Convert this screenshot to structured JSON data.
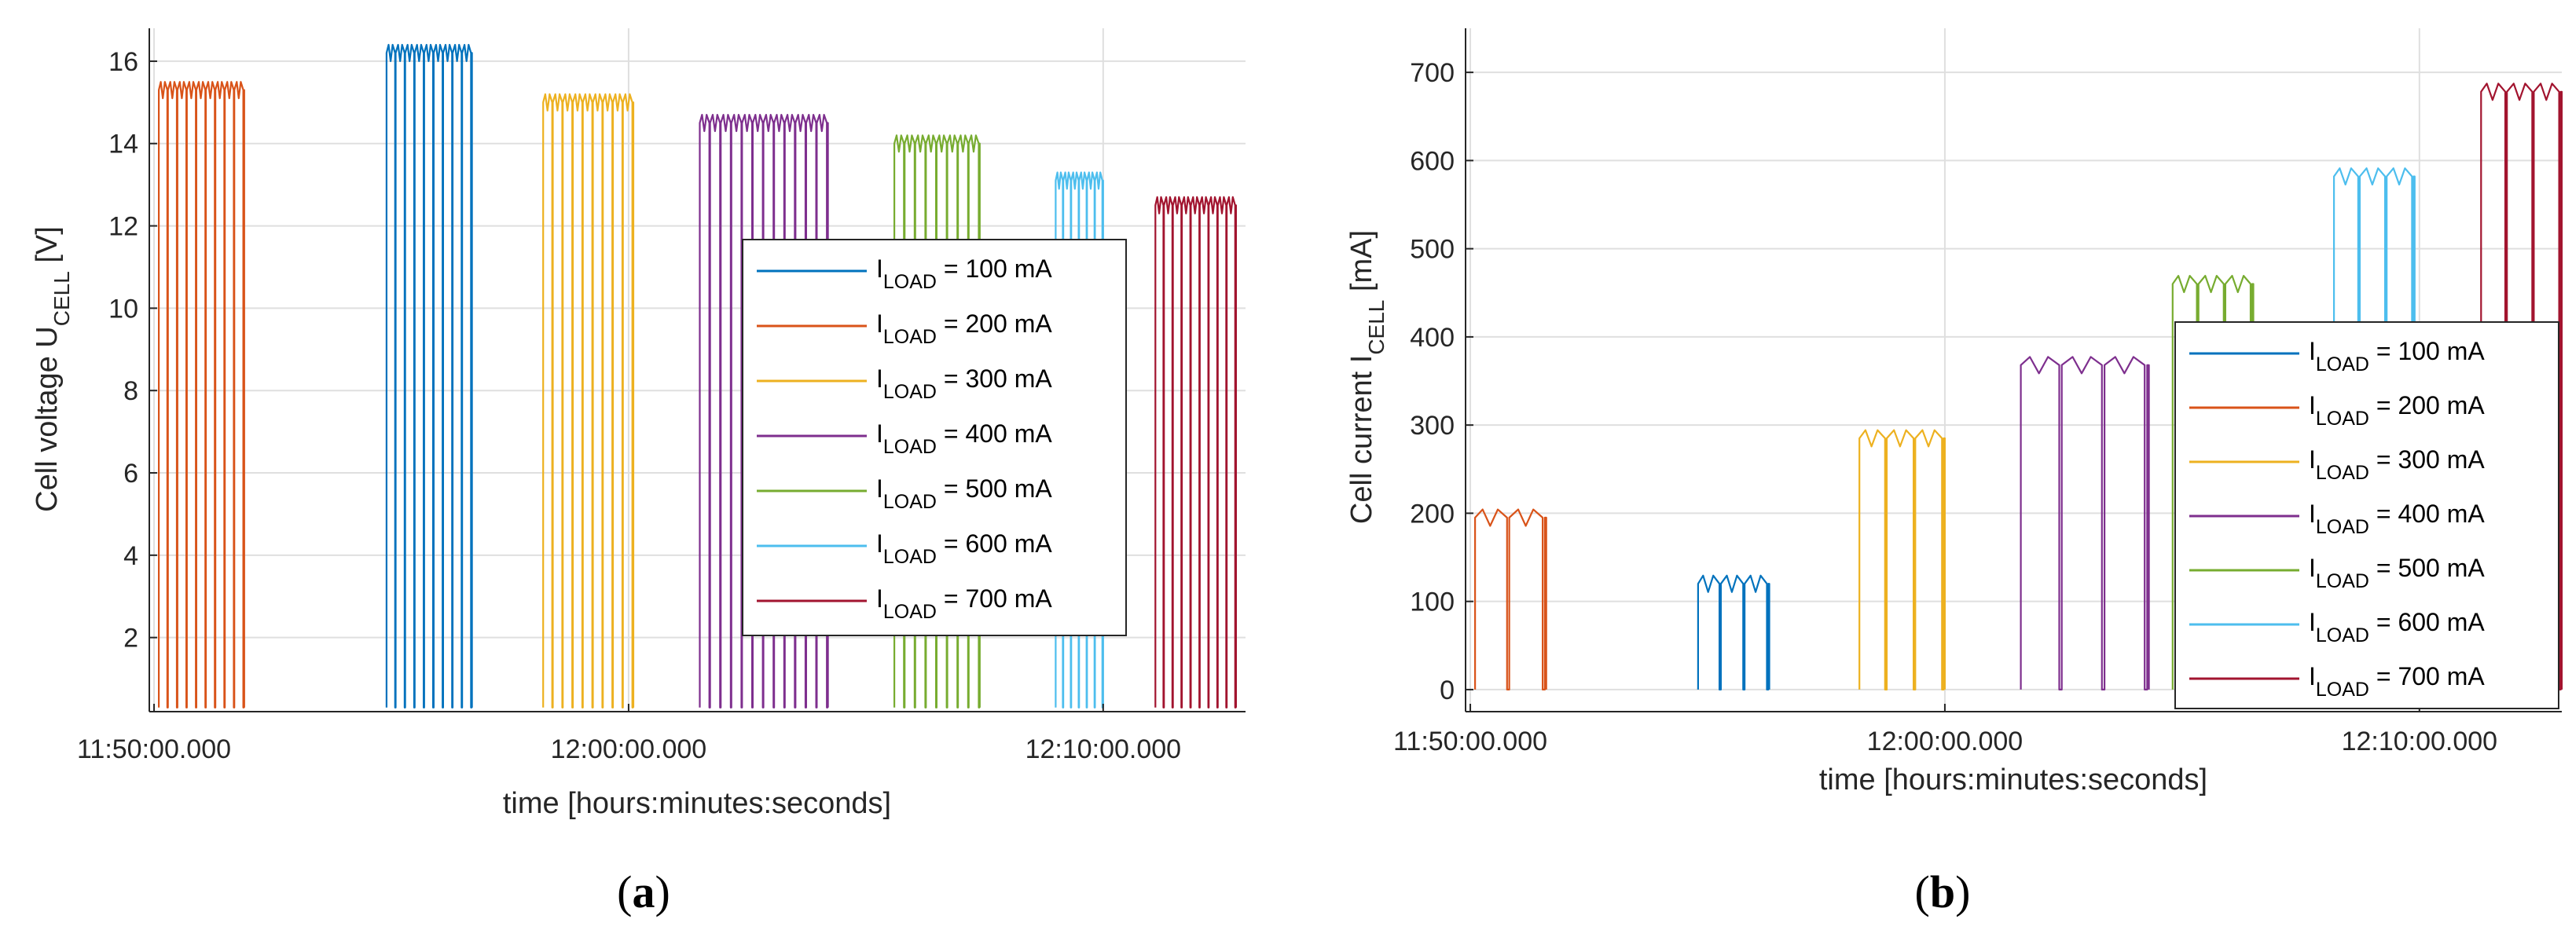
{
  "chart_data": [
    {
      "type": "line",
      "panel_label": "a",
      "title": "",
      "xlabel": "time [hours:minutes:seconds]",
      "ylabel": {
        "main": "Cell voltage U",
        "sub": "CELL",
        "unit": " [V]"
      },
      "x_unit": "minutes after 11:50:00",
      "x_ticks": [
        {
          "value": 0,
          "label": "11:50:00.000"
        },
        {
          "value": 10,
          "label": "12:00:00.000"
        },
        {
          "value": 20,
          "label": "12:10:00.000"
        }
      ],
      "xlim": [
        -0.1,
        23
      ],
      "y_ticks": [
        2,
        4,
        6,
        8,
        10,
        12,
        14,
        16
      ],
      "ylim": [
        0.2,
        16.8
      ],
      "grid": true,
      "legend_position": "center-right",
      "series": [
        {
          "name": "100 mA",
          "label_main": "I",
          "label_sub": "LOAD",
          "label_rest": " = 100 mA",
          "color": "#0072BD",
          "start": 4.9,
          "end": 6.7,
          "high": 16.2,
          "low": 0.3,
          "n_drops": 9
        },
        {
          "name": "200 mA",
          "label_main": "I",
          "label_sub": "LOAD",
          "label_rest": " = 200 mA",
          "color": "#D95319",
          "start": 0.1,
          "end": 1.9,
          "high": 15.3,
          "low": 0.3,
          "n_drops": 9
        },
        {
          "name": "300 mA",
          "label_main": "I",
          "label_sub": "LOAD",
          "label_rest": " = 300 mA",
          "color": "#EDB120",
          "start": 8.2,
          "end": 10.1,
          "high": 15.0,
          "low": 0.3,
          "n_drops": 9
        },
        {
          "name": "400 mA",
          "label_main": "I",
          "label_sub": "LOAD",
          "label_rest": " = 400 mA",
          "color": "#7E2F8E",
          "start": 11.5,
          "end": 14.2,
          "high": 14.5,
          "low": 0.3,
          "n_drops": 12
        },
        {
          "name": "500 mA",
          "label_main": "I",
          "label_sub": "LOAD",
          "label_rest": " = 500 mA",
          "color": "#77AC30",
          "start": 15.6,
          "end": 17.4,
          "high": 14.0,
          "low": 0.3,
          "n_drops": 8
        },
        {
          "name": "600 mA",
          "label_main": "I",
          "label_sub": "LOAD",
          "label_rest": " = 600 mA",
          "color": "#4DBEEE",
          "start": 19.0,
          "end": 20.0,
          "high": 13.1,
          "low": 0.3,
          "n_drops": 6
        },
        {
          "name": "700 mA",
          "label_main": "I",
          "label_sub": "LOAD",
          "label_rest": " = 700 mA",
          "color": "#A2142F",
          "start": 21.1,
          "end": 22.8,
          "high": 12.5,
          "low": 0.3,
          "n_drops": 9
        }
      ]
    },
    {
      "type": "line",
      "panel_label": "b",
      "title": "",
      "xlabel": "time [hours:minutes:seconds]",
      "ylabel": {
        "main": "Cell current I",
        "sub": "CELL",
        "unit": " [mA]"
      },
      "x_unit": "minutes after 11:50:00",
      "x_ticks": [
        {
          "value": 0,
          "label": "11:50:00.000"
        },
        {
          "value": 10,
          "label": "12:00:00.000"
        },
        {
          "value": 20,
          "label": "12:10:00.000"
        }
      ],
      "xlim": [
        -0.1,
        23
      ],
      "y_ticks": [
        0,
        100,
        200,
        300,
        400,
        500,
        600,
        700
      ],
      "ylim": [
        -25,
        750
      ],
      "grid": true,
      "legend_position": "right",
      "series": [
        {
          "name": "100 mA",
          "label_main": "I",
          "label_sub": "LOAD",
          "label_rest": " = 100 mA",
          "color": "#0072BD",
          "start": 4.8,
          "end": 6.3,
          "high": 120,
          "low": 0,
          "n_drops": 3
        },
        {
          "name": "200 mA",
          "label_main": "I",
          "label_sub": "LOAD",
          "label_rest": " = 200 mA",
          "color": "#D95319",
          "start": 0.1,
          "end": 1.6,
          "high": 195,
          "low": 0,
          "n_drops": 2
        },
        {
          "name": "300 mA",
          "label_main": "I",
          "label_sub": "LOAD",
          "label_rest": " = 300 mA",
          "color": "#EDB120",
          "start": 8.2,
          "end": 10.0,
          "high": 285,
          "low": 0,
          "n_drops": 3
        },
        {
          "name": "400 mA",
          "label_main": "I",
          "label_sub": "LOAD",
          "label_rest": " = 400 mA",
          "color": "#7E2F8E",
          "start": 11.6,
          "end": 14.3,
          "high": 368,
          "low": 0,
          "n_drops": 3
        },
        {
          "name": "500 mA",
          "label_main": "I",
          "label_sub": "LOAD",
          "label_rest": " = 500 mA",
          "color": "#77AC30",
          "start": 14.8,
          "end": 16.5,
          "high": 460,
          "low": 0,
          "n_drops": 3
        },
        {
          "name": "600 mA",
          "label_main": "I",
          "label_sub": "LOAD",
          "label_rest": " = 600 mA",
          "color": "#4DBEEE",
          "start": 18.2,
          "end": 19.9,
          "high": 582,
          "low": 0,
          "n_drops": 3
        },
        {
          "name": "700 mA",
          "label_main": "I",
          "label_sub": "LOAD",
          "label_rest": " = 700 mA",
          "color": "#A2142F",
          "start": 21.3,
          "end": 23.0,
          "high": 678,
          "low": 0,
          "n_drops": 3
        }
      ]
    }
  ]
}
